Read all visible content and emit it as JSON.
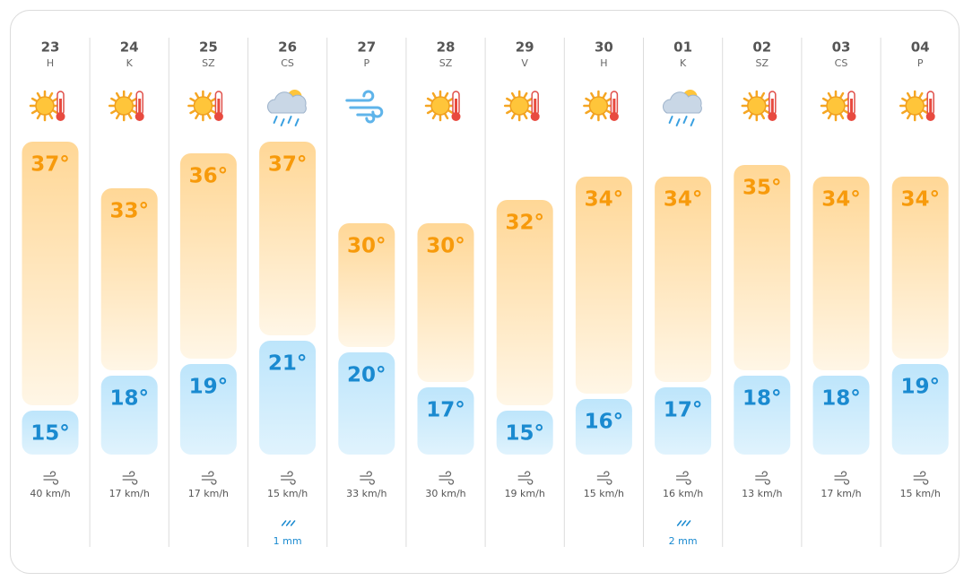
{
  "days": [
    {
      "date": "23",
      "weekday": "H",
      "icon": "sunny",
      "high": {
        "value": 37,
        "label": "37°"
      },
      "low": {
        "value": 15,
        "label": "15°"
      },
      "wind": "40 km/h"
    },
    {
      "date": "24",
      "weekday": "K",
      "icon": "sunny",
      "high": {
        "value": 33,
        "label": "33°"
      },
      "low": {
        "value": 18,
        "label": "18°"
      },
      "wind": "17 km/h"
    },
    {
      "date": "25",
      "weekday": "SZ",
      "icon": "sunny",
      "high": {
        "value": 36,
        "label": "36°"
      },
      "low": {
        "value": 19,
        "label": "19°"
      },
      "wind": "17 km/h"
    },
    {
      "date": "26",
      "weekday": "CS",
      "icon": "rain",
      "high": {
        "value": 37,
        "label": "37°"
      },
      "low": {
        "value": 21,
        "label": "21°"
      },
      "wind": "15 km/h",
      "rain": "1 mm"
    },
    {
      "date": "27",
      "weekday": "P",
      "icon": "wind",
      "high": {
        "value": 30,
        "label": "30°"
      },
      "low": {
        "value": 20,
        "label": "20°"
      },
      "wind": "33 km/h"
    },
    {
      "date": "28",
      "weekday": "SZ",
      "icon": "sunny",
      "high": {
        "value": 30,
        "label": "30°"
      },
      "low": {
        "value": 17,
        "label": "17°"
      },
      "wind": "30 km/h"
    },
    {
      "date": "29",
      "weekday": "V",
      "icon": "sunny",
      "high": {
        "value": 32,
        "label": "32°"
      },
      "low": {
        "value": 15,
        "label": "15°"
      },
      "wind": "19 km/h"
    },
    {
      "date": "30",
      "weekday": "H",
      "icon": "sunny",
      "high": {
        "value": 34,
        "label": "34°"
      },
      "low": {
        "value": 16,
        "label": "16°"
      },
      "wind": "15 km/h"
    },
    {
      "date": "01",
      "weekday": "K",
      "icon": "rain",
      "high": {
        "value": 34,
        "label": "34°"
      },
      "low": {
        "value": 17,
        "label": "17°"
      },
      "wind": "16 km/h",
      "rain": "2 mm"
    },
    {
      "date": "02",
      "weekday": "SZ",
      "icon": "sunny",
      "high": {
        "value": 35,
        "label": "35°"
      },
      "low": {
        "value": 18,
        "label": "18°"
      },
      "wind": "13 km/h"
    },
    {
      "date": "03",
      "weekday": "CS",
      "icon": "sunny",
      "high": {
        "value": 34,
        "label": "34°"
      },
      "low": {
        "value": 18,
        "label": "18°"
      },
      "wind": "17 km/h"
    },
    {
      "date": "04",
      "weekday": "P",
      "icon": "sunny",
      "high": {
        "value": 34,
        "label": "34°"
      },
      "low": {
        "value": 19,
        "label": "19°"
      },
      "wind": "15 km/h"
    }
  ]
}
